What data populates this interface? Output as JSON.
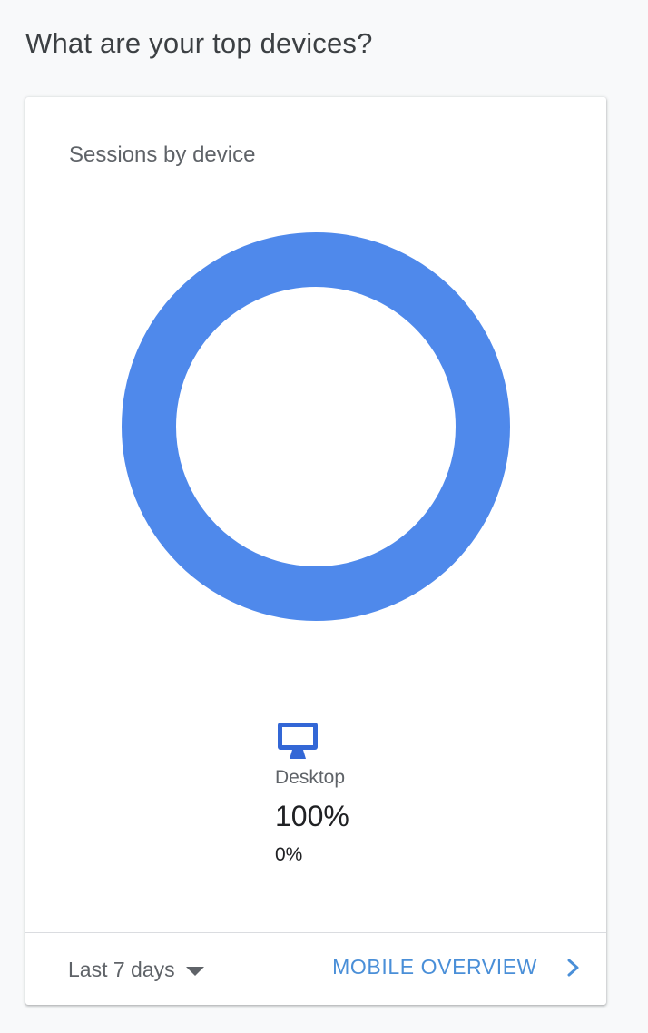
{
  "section": {
    "title": "What are your top devices?"
  },
  "card": {
    "title": "Sessions by device",
    "footer": {
      "date_range": "Last 7 days",
      "overview_link": "MOBILE OVERVIEW"
    }
  },
  "legend": [
    {
      "icon": "desktop-icon",
      "label": "Desktop",
      "share": "100%",
      "change": "0%"
    }
  ],
  "colors": {
    "desktop": "#4f89eb",
    "icon": "#3367d6",
    "link": "#4a8fd8"
  },
  "chart_data": {
    "type": "pie",
    "title": "Sessions by device",
    "categories": [
      "Desktop"
    ],
    "values": [
      100
    ],
    "donut": true
  }
}
